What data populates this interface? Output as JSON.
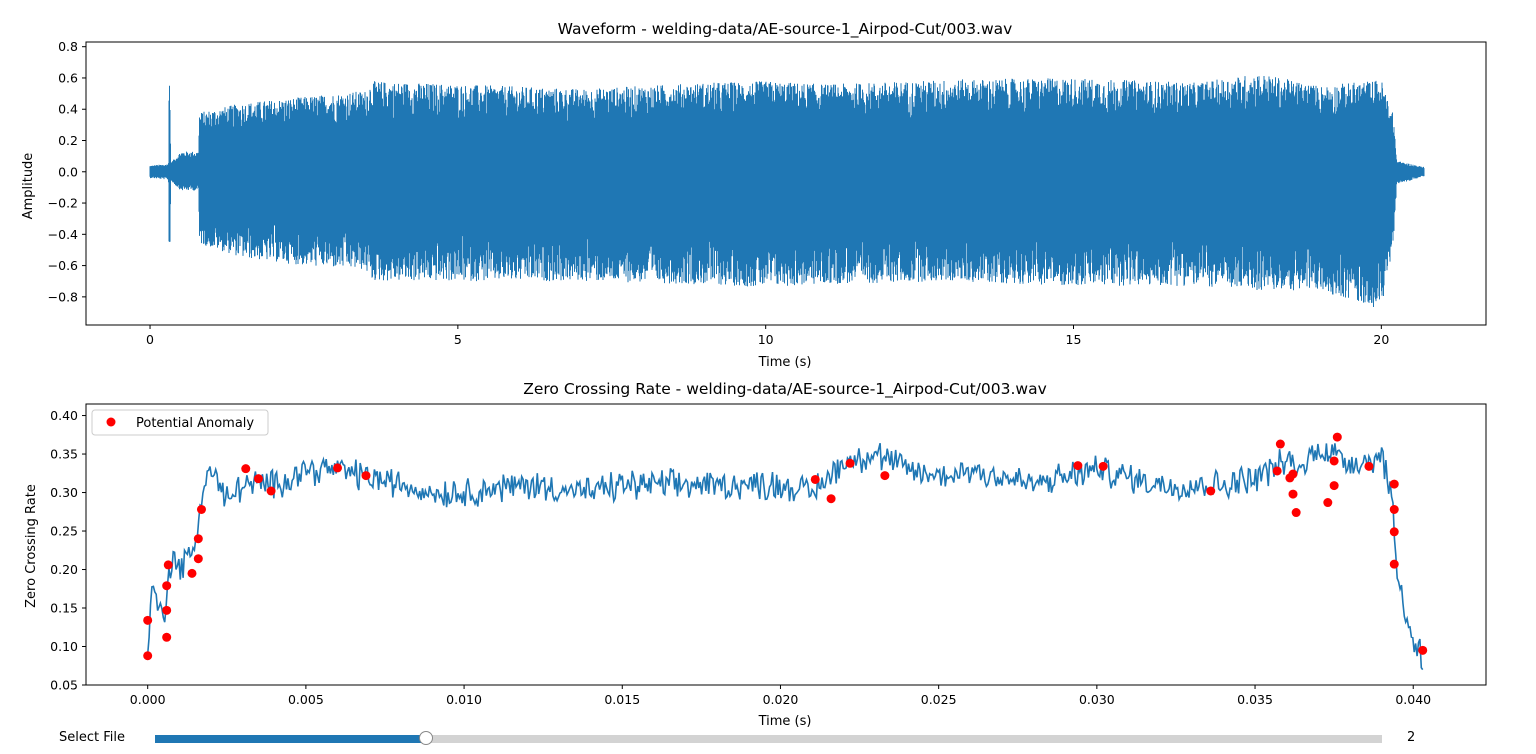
{
  "chart_data": [
    {
      "type": "line",
      "title": "Waveform - welding-data/AE-source-1_Airpod-Cut/003.wav",
      "xlabel": "Time (s)",
      "ylabel": "Amplitude",
      "xlim": [
        -1.04,
        21.7
      ],
      "ylim": [
        -0.98,
        0.83
      ],
      "xticks": [
        0,
        5,
        10,
        15,
        20
      ],
      "xtick_labels": [
        "0",
        "5",
        "10",
        "15",
        "20"
      ],
      "yticks": [
        -0.8,
        -0.6,
        -0.4,
        -0.2,
        0.0,
        0.2,
        0.4,
        0.6,
        0.8
      ],
      "ytick_labels": [
        "−0.8",
        "−0.6",
        "−0.4",
        "−0.2",
        "0.0",
        "0.2",
        "0.4",
        "0.6",
        "0.8"
      ],
      "series": [
        {
          "color": "#1f77b4",
          "envelope": {
            "t": [
              0,
              0.3,
              0.31,
              0.32,
              0.34,
              0.5,
              0.79,
              0.8,
              1.5,
              2.5,
              3.5,
              3.6,
              5,
              7,
              9,
              10,
              11,
              13,
              15,
              17,
              18,
              19,
              20,
              20.2,
              20.25,
              20.7
            ],
            "max": [
              0.04,
              0.05,
              0.63,
              0.6,
              0.06,
              0.13,
              0.13,
              0.38,
              0.44,
              0.48,
              0.52,
              0.58,
              0.56,
              0.53,
              0.57,
              0.58,
              0.56,
              0.59,
              0.6,
              0.57,
              0.63,
              0.55,
              0.59,
              0.36,
              0.07,
              0.03
            ],
            "min": [
              -0.04,
              -0.05,
              -0.6,
              -0.58,
              -0.06,
              -0.12,
              -0.12,
              -0.46,
              -0.55,
              -0.6,
              -0.63,
              -0.7,
              -0.7,
              -0.7,
              -0.72,
              -0.74,
              -0.72,
              -0.7,
              -0.73,
              -0.73,
              -0.76,
              -0.76,
              -0.88,
              -0.46,
              -0.08,
              -0.03
            ]
          }
        }
      ]
    },
    {
      "type": "line",
      "title": "Zero Crossing Rate - welding-data/AE-source-1_Airpod-Cut/003.wav",
      "xlabel": "Time (s)",
      "ylabel": "Zero Crossing Rate",
      "xlim": [
        -0.00195,
        0.0423
      ],
      "ylim": [
        0.05,
        0.415
      ],
      "xticks": [
        0.0,
        0.005,
        0.01,
        0.015,
        0.02,
        0.025,
        0.03,
        0.035,
        0.04
      ],
      "xtick_labels": [
        "0.000",
        "0.005",
        "0.010",
        "0.015",
        "0.020",
        "0.025",
        "0.030",
        "0.035",
        "0.040"
      ],
      "yticks": [
        0.05,
        0.1,
        0.15,
        0.2,
        0.25,
        0.3,
        0.35,
        0.4
      ],
      "ytick_labels": [
        "0.05",
        "0.10",
        "0.15",
        "0.20",
        "0.25",
        "0.30",
        "0.35",
        "0.40"
      ],
      "legend": {
        "position": "top-left",
        "entries": [
          "Potential Anomaly"
        ]
      },
      "series": [
        {
          "color": "#1f77b4",
          "trend": {
            "x": [
              0.0,
              0.0001,
              0.0003,
              0.0005,
              0.0006,
              0.0008,
              0.001,
              0.0012,
              0.0014,
              0.0016,
              0.0018,
              0.002,
              0.0025,
              0.003,
              0.0035,
              0.004,
              0.005,
              0.006,
              0.007,
              0.008,
              0.009,
              0.01,
              0.012,
              0.014,
              0.015,
              0.016,
              0.018,
              0.02,
              0.021,
              0.022,
              0.023,
              0.024,
              0.025,
              0.026,
              0.028,
              0.03,
              0.032,
              0.034,
              0.035,
              0.0355,
              0.036,
              0.0365,
              0.037,
              0.0375,
              0.038,
              0.0385,
              0.039,
              0.0393,
              0.0395,
              0.0397,
              0.0399,
              0.0401,
              0.0402,
              0.0403
            ],
            "y": [
              0.09,
              0.17,
              0.16,
              0.13,
              0.18,
              0.22,
              0.2,
              0.21,
              0.22,
              0.26,
              0.32,
              0.33,
              0.29,
              0.31,
              0.31,
              0.31,
              0.33,
              0.33,
              0.32,
              0.31,
              0.3,
              0.3,
              0.31,
              0.3,
              0.31,
              0.31,
              0.31,
              0.31,
              0.3,
              0.34,
              0.35,
              0.33,
              0.32,
              0.33,
              0.31,
              0.33,
              0.31,
              0.31,
              0.32,
              0.33,
              0.34,
              0.33,
              0.36,
              0.35,
              0.34,
              0.34,
              0.35,
              0.3,
              0.2,
              0.15,
              0.12,
              0.1,
              0.1,
              0.07
            ]
          }
        },
        {
          "name": "Potential Anomaly",
          "color": "#ff0000",
          "points": {
            "x": [
              0.0,
              0.0,
              0.0006,
              0.0006,
              0.0006,
              0.00065,
              0.0014,
              0.0016,
              0.0016,
              0.0017,
              0.0031,
              0.0035,
              0.0039,
              0.006,
              0.0069,
              0.0211,
              0.0216,
              0.0222,
              0.0233,
              0.0294,
              0.0302,
              0.0336,
              0.0357,
              0.0358,
              0.0361,
              0.0362,
              0.0362,
              0.0363,
              0.0373,
              0.0375,
              0.0375,
              0.0376,
              0.0386,
              0.0394,
              0.0394,
              0.0394,
              0.0394,
              0.0403
            ],
            "y": [
              0.134,
              0.088,
              0.112,
              0.147,
              0.179,
              0.206,
              0.195,
              0.214,
              0.24,
              0.278,
              0.331,
              0.318,
              0.302,
              0.332,
              0.322,
              0.317,
              0.292,
              0.338,
              0.322,
              0.335,
              0.334,
              0.302,
              0.328,
              0.363,
              0.319,
              0.324,
              0.298,
              0.274,
              0.287,
              0.309,
              0.341,
              0.372,
              0.334,
              0.311,
              0.278,
              0.249,
              0.207,
              0.095
            ]
          }
        }
      ]
    }
  ],
  "slider": {
    "label": "Select File",
    "value_text": "2",
    "fraction": 0.221,
    "fill_color": "#1f77b4",
    "track_color": "#d3d3d3"
  }
}
